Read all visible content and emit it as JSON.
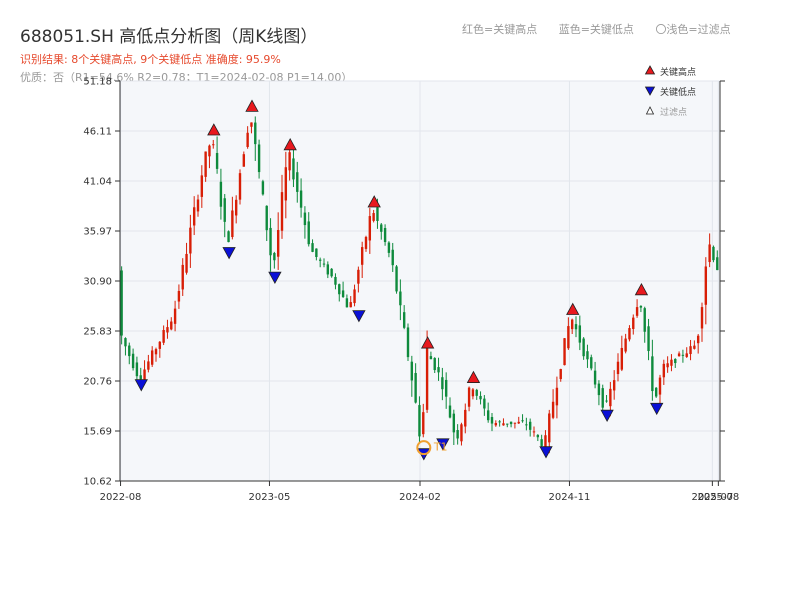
{
  "header": {
    "title": "688051.SH 高低点分析图（周K线图）",
    "result": "识别结果: 8个关键高点, 9个关键低点  准确度: 95.9%",
    "quality": "优质：否（R1=54.6%  R2=0.78；T1=2024-02-08 P1=14.00）",
    "legend_top": [
      "红色=关键高点",
      "蓝色=关键低点",
      "〇浅色=过滤点"
    ]
  },
  "colors": {
    "up": "#d81e06",
    "down": "#0e8a3c",
    "high_marker": "#e8191e",
    "low_marker": "#0a10d6",
    "t1": "#f0a030",
    "plot_bg": "#f5f7fa",
    "grid": "#e2e6ec"
  },
  "chart_data": {
    "type": "candlestick",
    "title": "688051.SH 高低点分析图（周K线图）",
    "ylim": [
      10.62,
      51.18
    ],
    "yticks": [
      "10.62",
      "15.69",
      "20.76",
      "25.83",
      "30.90",
      "35.97",
      "41.04",
      "46.11",
      "51.18"
    ],
    "x_range": [
      "2022-07-31",
      "2025-08-04"
    ],
    "xticks": [
      {
        "date": "2022-08-01",
        "label": "2022-08"
      },
      {
        "date": "2023-05-01",
        "label": "2023-05"
      },
      {
        "date": "2024-02-01",
        "label": "2024-02"
      },
      {
        "date": "2024-11-01",
        "label": "2024-11"
      },
      {
        "date": "2025-07-21",
        "label": "2025-07"
      },
      {
        "date": "2025-08-01",
        "label": "2025-08"
      }
    ],
    "anchor": [
      [
        "2022-07-31",
        26.0
      ],
      [
        "2022-09-08",
        21.0
      ],
      [
        "2022-11-10",
        27.5
      ],
      [
        "2023-01-05",
        43.0
      ],
      [
        "2023-01-19",
        45.5
      ],
      [
        "2023-02-16",
        34.5
      ],
      [
        "2023-03-30",
        48.0
      ],
      [
        "2023-05-11",
        32.0
      ],
      [
        "2023-06-08",
        44.0
      ],
      [
        "2023-07-20",
        34.0
      ],
      [
        "2023-08-31",
        31.0
      ],
      [
        "2023-09-28",
        28.0
      ],
      [
        "2023-11-09",
        38.3
      ],
      [
        "2023-12-14",
        33.0
      ],
      [
        "2024-01-18",
        22.0
      ],
      [
        "2024-02-08",
        14.0
      ],
      [
        "2024-02-15",
        24.0
      ],
      [
        "2024-03-14",
        21.0
      ],
      [
        "2024-04-11",
        14.7
      ],
      [
        "2024-05-09",
        20.5
      ],
      [
        "2024-06-13",
        16.5
      ],
      [
        "2024-08-15",
        16.5
      ],
      [
        "2024-09-19",
        14.2
      ],
      [
        "2024-10-17",
        22.0
      ],
      [
        "2024-11-07",
        27.4
      ],
      [
        "2024-12-12",
        22.0
      ],
      [
        "2025-01-09",
        17.9
      ],
      [
        "2025-02-20",
        26.0
      ],
      [
        "2025-03-13",
        29.4
      ],
      [
        "2025-04-10",
        18.6
      ],
      [
        "2025-04-24",
        22.0
      ],
      [
        "2025-06-26",
        24.5
      ],
      [
        "2025-07-17",
        35.0
      ],
      [
        "2025-08-04",
        32.0
      ]
    ],
    "key_highs": [
      {
        "date": "2023-01-19",
        "price": 45.6
      },
      {
        "date": "2023-03-30",
        "price": 48.0
      },
      {
        "date": "2023-06-08",
        "price": 44.1
      },
      {
        "date": "2023-11-09",
        "price": 38.3
      },
      {
        "date": "2024-02-15",
        "price": 24.0
      },
      {
        "date": "2024-05-09",
        "price": 20.5
      },
      {
        "date": "2024-11-07",
        "price": 27.4
      },
      {
        "date": "2025-03-13",
        "price": 29.4
      }
    ],
    "key_lows": [
      {
        "date": "2022-09-08",
        "price": 21.0
      },
      {
        "date": "2023-02-16",
        "price": 34.4
      },
      {
        "date": "2023-05-11",
        "price": 31.9
      },
      {
        "date": "2023-10-12",
        "price": 28.0
      },
      {
        "date": "2024-02-08",
        "price": 14.0
      },
      {
        "date": "2024-03-14",
        "price": 15.0
      },
      {
        "date": "2024-09-19",
        "price": 14.2
      },
      {
        "date": "2025-01-09",
        "price": 17.9
      },
      {
        "date": "2025-04-10",
        "price": 18.6
      }
    ],
    "t1": {
      "date": "2024-02-08",
      "price": 14.0,
      "label": "T1"
    },
    "legend": [
      {
        "label": "关键高点",
        "kind": "high"
      },
      {
        "label": "关键低点",
        "kind": "low"
      },
      {
        "label": "过滤点",
        "kind": "filtered"
      }
    ],
    "legend_placement": "top-right",
    "grid": true
  }
}
